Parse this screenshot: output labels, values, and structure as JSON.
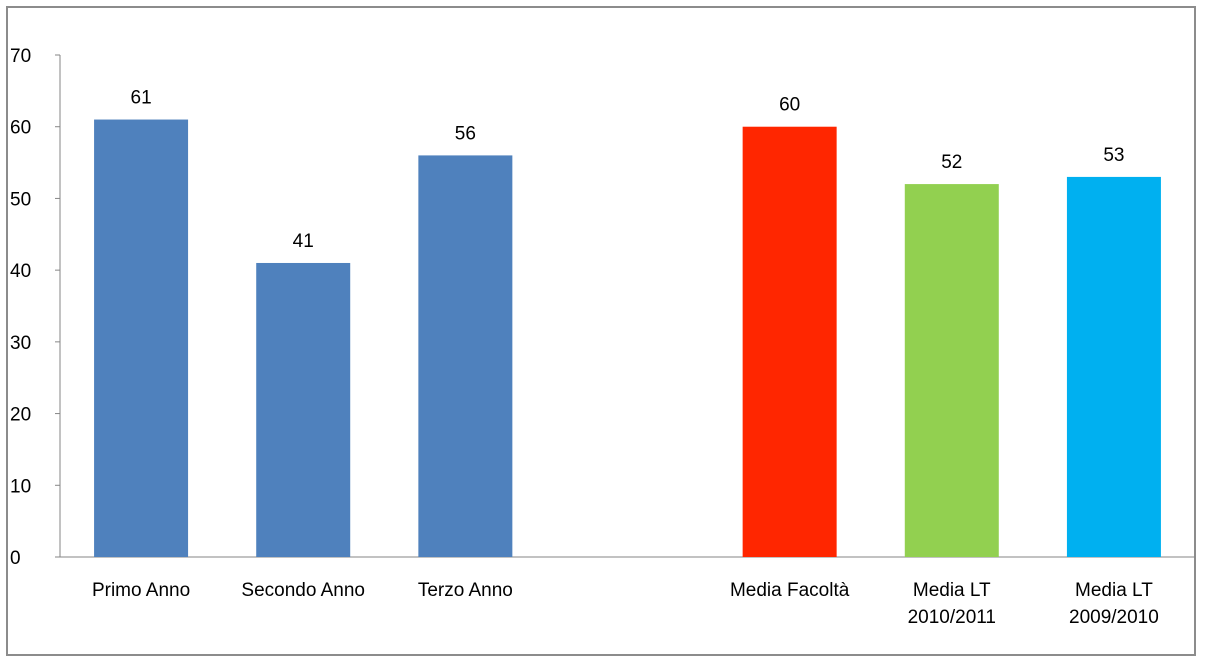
{
  "chart_data": {
    "type": "bar",
    "title": "",
    "xlabel": "",
    "ylabel": "",
    "ylim": [
      0,
      70
    ],
    "yticks": [
      0,
      10,
      20,
      30,
      40,
      50,
      60,
      70
    ],
    "grid": false,
    "legend": "none",
    "categories": [
      [
        "Primo Anno"
      ],
      [
        "Secondo Anno"
      ],
      [
        "Terzo Anno"
      ],
      [],
      [
        "Media Facoltà"
      ],
      [
        "Media LT",
        "2010/2011"
      ],
      [
        "Media LT",
        "2009/2010"
      ]
    ],
    "values": [
      61,
      41,
      56,
      null,
      60,
      52,
      53
    ],
    "data_labels": [
      "61",
      "41",
      "56",
      "",
      "60",
      "52",
      "53"
    ],
    "colors": [
      "#4f81bd",
      "#4f81bd",
      "#4f81bd",
      "",
      "#ff2600",
      "#92d050",
      "#00b0f0"
    ]
  }
}
